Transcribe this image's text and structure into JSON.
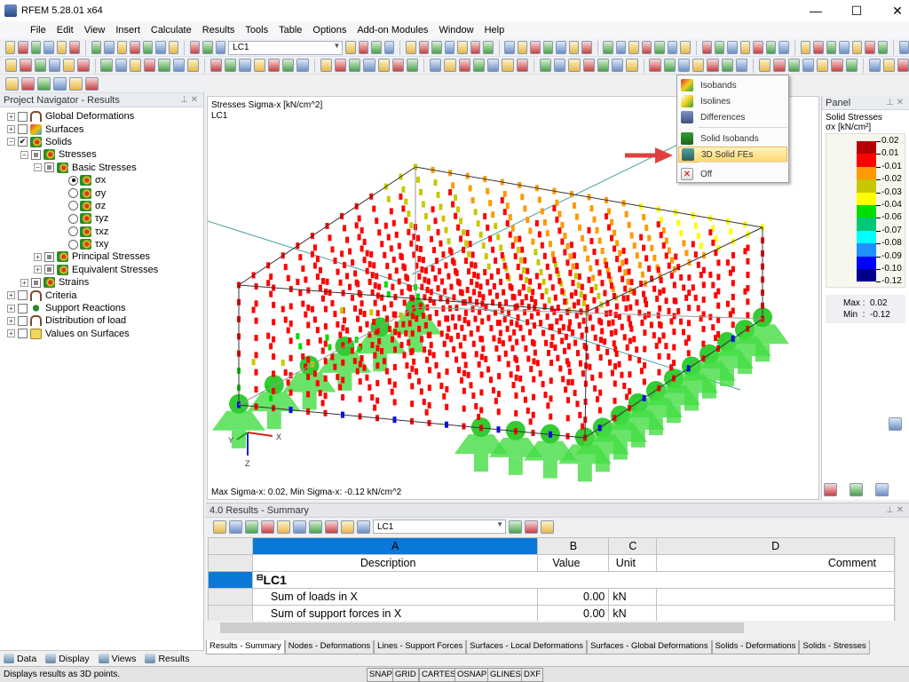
{
  "app": {
    "title": "RFEM 5.28.01 x64",
    "min": "—",
    "max": "☐",
    "close": "✕"
  },
  "menu": [
    "File",
    "Edit",
    "View",
    "Insert",
    "Calculate",
    "Results",
    "Tools",
    "Table",
    "Options",
    "Add-on Modules",
    "Window",
    "Help"
  ],
  "toolbar": {
    "load_case": "LC1"
  },
  "navigator": {
    "title": "Project Navigator - Results",
    "items": [
      {
        "label": "Global Deformations",
        "level": 0,
        "pm": "+",
        "check": "off",
        "icon": "def"
      },
      {
        "label": "Surfaces",
        "level": 0,
        "pm": "+",
        "check": "off",
        "icon": "surf"
      },
      {
        "label": "Solids",
        "level": 0,
        "pm": "-",
        "check": "on",
        "icon": "solid"
      },
      {
        "label": "Stresses",
        "level": 1,
        "pm": "-",
        "check": "part",
        "icon": "solid"
      },
      {
        "label": "Basic Stresses",
        "level": 2,
        "pm": "-",
        "check": "part",
        "icon": "solid"
      },
      {
        "label": "σx",
        "level": 3,
        "radio": "on",
        "icon": "solid"
      },
      {
        "label": "σy",
        "level": 3,
        "radio": "off",
        "icon": "solid"
      },
      {
        "label": "σz",
        "level": 3,
        "radio": "off",
        "icon": "solid"
      },
      {
        "label": "τyz",
        "level": 3,
        "radio": "off",
        "icon": "solid"
      },
      {
        "label": "τxz",
        "level": 3,
        "radio": "off",
        "icon": "solid"
      },
      {
        "label": "τxy",
        "level": 3,
        "radio": "off",
        "icon": "solid"
      },
      {
        "label": "Principal Stresses",
        "level": 2,
        "pm": "+",
        "check": "part",
        "icon": "solid"
      },
      {
        "label": "Equivalent Stresses",
        "level": 2,
        "pm": "+",
        "check": "part",
        "icon": "solid"
      },
      {
        "label": "Strains",
        "level": 1,
        "pm": "+",
        "check": "part",
        "icon": "solid"
      },
      {
        "label": "Criteria",
        "level": 0,
        "pm": "+",
        "check": "off",
        "icon": "def"
      },
      {
        "label": "Support Reactions",
        "level": 0,
        "pm": "+",
        "check": "off",
        "icon": "sup"
      },
      {
        "label": "Distribution of load",
        "level": 0,
        "pm": "+",
        "check": "off",
        "icon": "def"
      },
      {
        "label": "Values on Surfaces",
        "level": 0,
        "pm": "+",
        "check": "off",
        "icon": "val"
      }
    ],
    "tabs": [
      "Data",
      "Display",
      "Views",
      "Results"
    ]
  },
  "view": {
    "title": "Stresses Sigma-x [kN/cm^2]",
    "load_case": "LC1",
    "footer": "Max Sigma-x: 0.02, Min Sigma-x: -0.12 kN/cm^2",
    "axes": {
      "x": "X",
      "y": "Y",
      "z": "Z"
    }
  },
  "dropdown": {
    "items": [
      {
        "label": "Isobands",
        "icon": "isobands-icon"
      },
      {
        "label": "Isolines",
        "icon": "isolines-icon"
      },
      {
        "label": "Differences",
        "icon": "differences-icon"
      },
      {
        "label": "Solid Isobands",
        "icon": "solid-isobands-icon"
      },
      {
        "label": "3D Solid FEs",
        "icon": "solid-fe-icon",
        "highlighted": true
      },
      {
        "label": "Off",
        "icon": "off-icon"
      }
    ]
  },
  "panel": {
    "title": "Panel",
    "heading": "Solid Stresses",
    "unit": "σx [kN/cm²]",
    "legend_values": [
      "0.02",
      "0.01",
      "-0.01",
      "-0.02",
      "-0.03",
      "-0.04",
      "-0.06",
      "-0.07",
      "-0.08",
      "-0.09",
      "-0.10",
      "-0.12"
    ],
    "legend_colors": [
      "#b40000",
      "#ff0000",
      "#ff9a00",
      "#c8c800",
      "#ffff00",
      "#00dd00",
      "#00c878",
      "#00ffff",
      "#1e90ff",
      "#0000ff",
      "#00008c"
    ],
    "max_label": "Max",
    "max": "0.02",
    "min_label": "Min",
    "min": "-0.12"
  },
  "results": {
    "title": "4.0 Results - Summary",
    "load_case": "LC1",
    "columns": [
      {
        "letter": "A",
        "name": "Description"
      },
      {
        "letter": "B",
        "name": "Value"
      },
      {
        "letter": "C",
        "name": "Unit"
      },
      {
        "letter": "D",
        "name": "Comment"
      }
    ],
    "group": "LC1",
    "rows": [
      {
        "desc": "Sum of loads in X",
        "value": "0.00",
        "unit": "kN"
      },
      {
        "desc": "Sum of support forces in X",
        "value": "0.00",
        "unit": "kN"
      }
    ],
    "tabs": [
      "Results - Summary",
      "Nodes - Deformations",
      "Lines - Support Forces",
      "Surfaces - Local Deformations",
      "Surfaces - Global Deformations",
      "Solids - Deformations",
      "Solids - Stresses"
    ]
  },
  "status": {
    "text": "Displays results as 3D points.",
    "buttons": [
      "SNAP",
      "GRID",
      "CARTES",
      "OSNAP",
      "GLINES",
      "DXF"
    ]
  }
}
